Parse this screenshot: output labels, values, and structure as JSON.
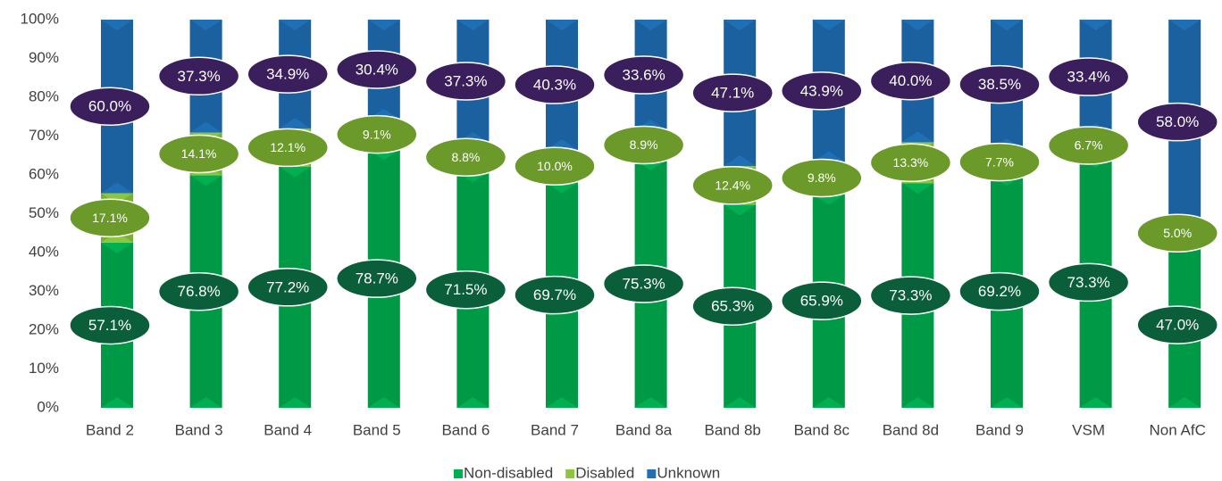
{
  "chart_data": {
    "type": "bar",
    "stack": "percent",
    "categories": [
      "Band 2",
      "Band 3",
      "Band 4",
      "Band 5",
      "Band 6",
      "Band 7",
      "Band 8a",
      "Band 8b",
      "Band 8c",
      "Band 8d",
      "Band 9",
      "VSM",
      "Non AfC"
    ],
    "series": [
      {
        "name": "Non-disabled",
        "color": "#00b050",
        "label_color": "#0b5e3a",
        "label_size": 17,
        "values": [
          57.1,
          76.8,
          77.2,
          78.7,
          71.5,
          69.7,
          75.3,
          65.3,
          65.9,
          73.3,
          69.2,
          73.3,
          47.0
        ],
        "value_labels": [
          "57.1%",
          "76.8%",
          "77.2%",
          "78.7%",
          "71.5%",
          "69.7%",
          "75.3%",
          "65.3%",
          "65.9%",
          "73.3%",
          "69.2%",
          "73.3%",
          "47.0%"
        ]
      },
      {
        "name": "Disabled",
        "color": "#8cc63f",
        "label_color": "#6b9a2a",
        "label_size": 14,
        "values": [
          17.1,
          14.1,
          12.1,
          9.1,
          8.8,
          10.0,
          8.9,
          12.4,
          9.8,
          13.3,
          7.7,
          6.7,
          5.0
        ],
        "value_labels": [
          "17.1%",
          "14.1%",
          "12.1%",
          "9.1%",
          "8.8%",
          "10.0%",
          "8.9%",
          "12.4%",
          "9.8%",
          "13.3%",
          "7.7%",
          "6.7%",
          "5.0%"
        ]
      },
      {
        "name": "Unknown",
        "color": "#1f6fb5",
        "label_color": "#3a1f5c",
        "label_size": 17,
        "values": [
          60.0,
          37.3,
          34.9,
          30.4,
          37.3,
          40.3,
          33.6,
          47.1,
          43.9,
          40.0,
          38.5,
          33.4,
          58.0
        ],
        "value_labels": [
          "60.0%",
          "37.3%",
          "34.9%",
          "30.4%",
          "37.3%",
          "40.3%",
          "33.6%",
          "47.1%",
          "43.9%",
          "40.0%",
          "38.5%",
          "33.4%",
          "58.0%"
        ]
      }
    ],
    "ylim": [
      0,
      100
    ],
    "yticks": [
      {
        "value": 0,
        "label": "0%"
      },
      {
        "value": 10,
        "label": "10%"
      },
      {
        "value": 20,
        "label": "20%"
      },
      {
        "value": 30,
        "label": "30%"
      },
      {
        "value": 40,
        "label": "40%"
      },
      {
        "value": 50,
        "label": "50%"
      },
      {
        "value": 60,
        "label": "60%"
      },
      {
        "value": 70,
        "label": "70%"
      },
      {
        "value": 80,
        "label": "80%"
      },
      {
        "value": 90,
        "label": "90%"
      },
      {
        "value": 100,
        "label": "100%"
      }
    ],
    "grid": false,
    "legend": "bottom"
  }
}
